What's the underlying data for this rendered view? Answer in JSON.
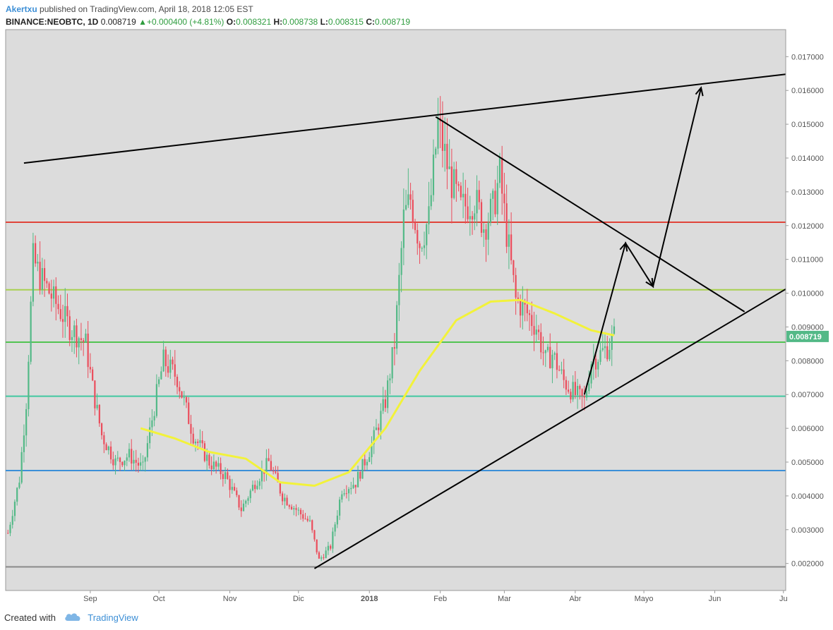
{
  "header": {
    "author": "Akertxu",
    "published_text": " published on TradingView.com, April 18, 2018 12:05 EST",
    "symbol": "BINANCE:NEOBTC, 1D",
    "price": "0.008719",
    "change": "+0.000400 (+4.81%)",
    "o_label": "O:",
    "o_value": "0.008321",
    "h_label": "H:",
    "h_value": "0.008738",
    "l_label": "L:",
    "l_value": "0.008315",
    "c_label": "C:",
    "c_value": "0.008719"
  },
  "footer": {
    "created_with": "Created with",
    "brand": "TradingView",
    "icon": "tradingview-cloud-icon"
  },
  "chart_data": {
    "type": "candlestick",
    "ylim": [
      0.0012,
      0.0178
    ],
    "x_dates": [
      "2017-07-26",
      "2018-07-02"
    ],
    "y_ticks": [
      "0.017000",
      "0.016000",
      "0.015000",
      "0.014000",
      "0.013000",
      "0.012000",
      "0.011000",
      "0.010000",
      "0.009000",
      "0.008000",
      "0.007000",
      "0.006000",
      "0.005000",
      "0.004000",
      "0.003000",
      "0.002000"
    ],
    "x_ticks": [
      {
        "label": "Sep",
        "date": "2017-09-01"
      },
      {
        "label": "Oct",
        "date": "2017-10-01"
      },
      {
        "label": "Nov",
        "date": "2017-11-01"
      },
      {
        "label": "Dic",
        "date": "2017-12-01"
      },
      {
        "label": "2018",
        "date": "2018-01-01",
        "bold": true
      },
      {
        "label": "Feb",
        "date": "2018-02-01"
      },
      {
        "label": "Mar",
        "date": "2018-03-01"
      },
      {
        "label": "Abr",
        "date": "2018-04-01"
      },
      {
        "label": "Mayo",
        "date": "2018-05-01"
      },
      {
        "label": "Jun",
        "date": "2018-06-01"
      },
      {
        "label": "Ju",
        "date": "2018-07-01"
      }
    ],
    "last_price_label": "0.008719",
    "last_price": 0.008719,
    "colors": {
      "up": "#53b987",
      "down": "#eb4d5c",
      "ma": "#f2f23a",
      "background": "#dcdcdc"
    },
    "horizontal_lines": [
      {
        "y": 0.0121,
        "color": "#e0443a"
      },
      {
        "y": 0.0101,
        "color": "#a8d050"
      },
      {
        "y": 0.00855,
        "color": "#52c452"
      },
      {
        "y": 0.00695,
        "color": "#42c8a0"
      },
      {
        "y": 0.00475,
        "color": "#3c90d8"
      },
      {
        "y": 0.0019,
        "color": "#8a8a8a"
      }
    ],
    "trend_lines": [
      {
        "from": [
          "2017-08-03",
          0.01385
        ],
        "to": [
          "2018-07-02",
          0.01648
        ]
      },
      {
        "from": [
          "2018-01-30",
          0.01522
        ],
        "to": [
          "2018-06-14",
          0.00945
        ]
      },
      {
        "from": [
          "2017-12-08",
          0.00185
        ],
        "to": [
          "2018-07-02",
          0.01012
        ]
      }
    ],
    "arrow_path": [
      [
        "2018-04-05",
        0.007
      ],
      [
        "2018-04-23",
        0.01148
      ],
      [
        "2018-05-05",
        0.0102
      ],
      [
        "2018-05-26",
        0.01608
      ]
    ],
    "moving_average": [
      [
        "2017-09-23",
        0.006
      ],
      [
        "2017-10-08",
        0.0057
      ],
      [
        "2017-10-23",
        0.0053
      ],
      [
        "2017-11-08",
        0.0051
      ],
      [
        "2017-11-23",
        0.0044
      ],
      [
        "2017-12-08",
        0.0043
      ],
      [
        "2017-12-23",
        0.0047
      ],
      [
        "2018-01-08",
        0.006
      ],
      [
        "2018-01-23",
        0.0077
      ],
      [
        "2018-02-08",
        0.0092
      ],
      [
        "2018-02-23",
        0.00975
      ],
      [
        "2018-03-08",
        0.0098
      ],
      [
        "2018-03-23",
        0.0094
      ],
      [
        "2018-04-08",
        0.0089
      ],
      [
        "2018-04-18",
        0.00875
      ]
    ],
    "price_path": [
      [
        "2017-07-27",
        0.0029
      ],
      [
        "2017-08-01",
        0.0045
      ],
      [
        "2017-08-04",
        0.0068
      ],
      [
        "2017-08-07",
        0.011
      ],
      [
        "2017-08-10",
        0.0105
      ],
      [
        "2017-08-16",
        0.0098
      ],
      [
        "2017-08-23",
        0.009
      ],
      [
        "2017-08-30",
        0.0085
      ],
      [
        "2017-09-02",
        0.0072
      ],
      [
        "2017-09-06",
        0.0058
      ],
      [
        "2017-09-12",
        0.005
      ],
      [
        "2017-09-18",
        0.0052
      ],
      [
        "2017-09-24",
        0.0048
      ],
      [
        "2017-09-30",
        0.007
      ],
      [
        "2017-10-03",
        0.008
      ],
      [
        "2017-10-09",
        0.0075
      ],
      [
        "2017-10-16",
        0.0058
      ],
      [
        "2017-10-23",
        0.005
      ],
      [
        "2017-10-30",
        0.0046
      ],
      [
        "2017-11-06",
        0.0036
      ],
      [
        "2017-11-12",
        0.0044
      ],
      [
        "2017-11-18",
        0.005
      ],
      [
        "2017-11-24",
        0.004
      ],
      [
        "2017-11-30",
        0.0036
      ],
      [
        "2017-12-06",
        0.0032
      ],
      [
        "2017-12-10",
        0.0021
      ],
      [
        "2017-12-15",
        0.0025
      ],
      [
        "2017-12-20",
        0.0042
      ],
      [
        "2017-12-26",
        0.0044
      ],
      [
        "2018-01-02",
        0.0055
      ],
      [
        "2018-01-08",
        0.0068
      ],
      [
        "2018-01-12",
        0.0085
      ],
      [
        "2018-01-16",
        0.0122
      ],
      [
        "2018-01-19",
        0.0128
      ],
      [
        "2018-01-23",
        0.0115
      ],
      [
        "2018-01-27",
        0.0122
      ],
      [
        "2018-01-31",
        0.015
      ],
      [
        "2018-02-05",
        0.0135
      ],
      [
        "2018-02-10",
        0.0125
      ],
      [
        "2018-02-16",
        0.0128
      ],
      [
        "2018-02-20",
        0.012
      ],
      [
        "2018-02-24",
        0.0125
      ],
      [
        "2018-02-27",
        0.0135
      ],
      [
        "2018-03-02",
        0.0118
      ],
      [
        "2018-03-06",
        0.0098
      ],
      [
        "2018-03-10",
        0.0095
      ],
      [
        "2018-03-15",
        0.009
      ],
      [
        "2018-03-19",
        0.008
      ],
      [
        "2018-03-22",
        0.0082
      ],
      [
        "2018-03-27",
        0.0074
      ],
      [
        "2018-04-01",
        0.007
      ],
      [
        "2018-04-05",
        0.0068
      ],
      [
        "2018-04-08",
        0.008
      ],
      [
        "2018-04-12",
        0.0082
      ],
      [
        "2018-04-15",
        0.0084
      ],
      [
        "2018-04-18",
        0.008719
      ]
    ]
  }
}
